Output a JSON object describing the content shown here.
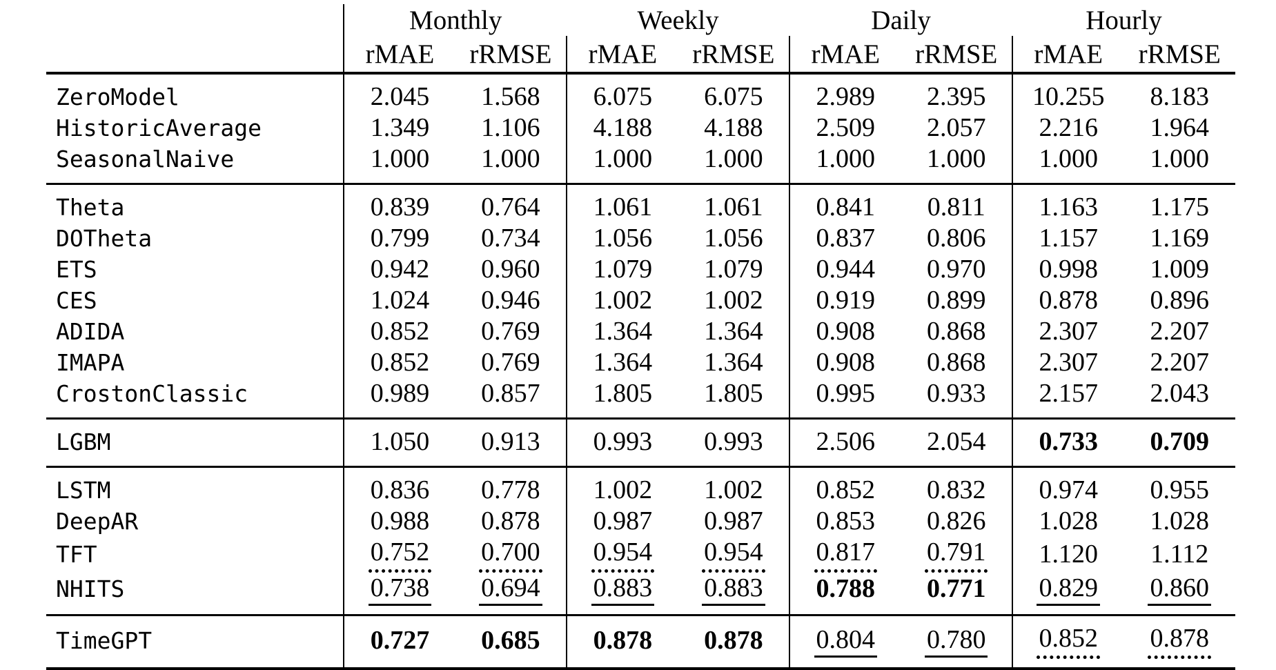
{
  "table": {
    "corner": "",
    "col_groups": [
      {
        "label": "Monthly"
      },
      {
        "label": "Weekly"
      },
      {
        "label": "Daily"
      },
      {
        "label": "Hourly"
      }
    ],
    "metric_headers": [
      "rMAE",
      "rRMSE",
      "rMAE",
      "rRMSE",
      "rMAE",
      "rRMSE",
      "rMAE",
      "rRMSE"
    ],
    "sections": [
      {
        "rows": [
          {
            "model": "ZeroModel",
            "cells": [
              {
                "v": "2.045",
                "s": "plain"
              },
              {
                "v": "1.568",
                "s": "plain"
              },
              {
                "v": "6.075",
                "s": "plain"
              },
              {
                "v": "6.075",
                "s": "plain"
              },
              {
                "v": "2.989",
                "s": "plain"
              },
              {
                "v": "2.395",
                "s": "plain"
              },
              {
                "v": "10.255",
                "s": "plain"
              },
              {
                "v": "8.183",
                "s": "plain"
              }
            ]
          },
          {
            "model": "HistoricAverage",
            "cells": [
              {
                "v": "1.349",
                "s": "plain"
              },
              {
                "v": "1.106",
                "s": "plain"
              },
              {
                "v": "4.188",
                "s": "plain"
              },
              {
                "v": "4.188",
                "s": "plain"
              },
              {
                "v": "2.509",
                "s": "plain"
              },
              {
                "v": "2.057",
                "s": "plain"
              },
              {
                "v": "2.216",
                "s": "plain"
              },
              {
                "v": "1.964",
                "s": "plain"
              }
            ]
          },
          {
            "model": "SeasonalNaive",
            "cells": [
              {
                "v": "1.000",
                "s": "plain"
              },
              {
                "v": "1.000",
                "s": "plain"
              },
              {
                "v": "1.000",
                "s": "plain"
              },
              {
                "v": "1.000",
                "s": "plain"
              },
              {
                "v": "1.000",
                "s": "plain"
              },
              {
                "v": "1.000",
                "s": "plain"
              },
              {
                "v": "1.000",
                "s": "plain"
              },
              {
                "v": "1.000",
                "s": "plain"
              }
            ]
          }
        ]
      },
      {
        "rows": [
          {
            "model": "Theta",
            "cells": [
              {
                "v": "0.839",
                "s": "plain"
              },
              {
                "v": "0.764",
                "s": "plain"
              },
              {
                "v": "1.061",
                "s": "plain"
              },
              {
                "v": "1.061",
                "s": "plain"
              },
              {
                "v": "0.841",
                "s": "plain"
              },
              {
                "v": "0.811",
                "s": "plain"
              },
              {
                "v": "1.163",
                "s": "plain"
              },
              {
                "v": "1.175",
                "s": "plain"
              }
            ]
          },
          {
            "model": "DOTheta",
            "cells": [
              {
                "v": "0.799",
                "s": "plain"
              },
              {
                "v": "0.734",
                "s": "plain"
              },
              {
                "v": "1.056",
                "s": "plain"
              },
              {
                "v": "1.056",
                "s": "plain"
              },
              {
                "v": "0.837",
                "s": "plain"
              },
              {
                "v": "0.806",
                "s": "plain"
              },
              {
                "v": "1.157",
                "s": "plain"
              },
              {
                "v": "1.169",
                "s": "plain"
              }
            ]
          },
          {
            "model": "ETS",
            "cells": [
              {
                "v": "0.942",
                "s": "plain"
              },
              {
                "v": "0.960",
                "s": "plain"
              },
              {
                "v": "1.079",
                "s": "plain"
              },
              {
                "v": "1.079",
                "s": "plain"
              },
              {
                "v": "0.944",
                "s": "plain"
              },
              {
                "v": "0.970",
                "s": "plain"
              },
              {
                "v": "0.998",
                "s": "plain"
              },
              {
                "v": "1.009",
                "s": "plain"
              }
            ]
          },
          {
            "model": "CES",
            "cells": [
              {
                "v": "1.024",
                "s": "plain"
              },
              {
                "v": "0.946",
                "s": "plain"
              },
              {
                "v": "1.002",
                "s": "plain"
              },
              {
                "v": "1.002",
                "s": "plain"
              },
              {
                "v": "0.919",
                "s": "plain"
              },
              {
                "v": "0.899",
                "s": "plain"
              },
              {
                "v": "0.878",
                "s": "plain"
              },
              {
                "v": "0.896",
                "s": "plain"
              }
            ]
          },
          {
            "model": "ADIDA",
            "cells": [
              {
                "v": "0.852",
                "s": "plain"
              },
              {
                "v": "0.769",
                "s": "plain"
              },
              {
                "v": "1.364",
                "s": "plain"
              },
              {
                "v": "1.364",
                "s": "plain"
              },
              {
                "v": "0.908",
                "s": "plain"
              },
              {
                "v": "0.868",
                "s": "plain"
              },
              {
                "v": "2.307",
                "s": "plain"
              },
              {
                "v": "2.207",
                "s": "plain"
              }
            ]
          },
          {
            "model": "IMAPA",
            "cells": [
              {
                "v": "0.852",
                "s": "plain"
              },
              {
                "v": "0.769",
                "s": "plain"
              },
              {
                "v": "1.364",
                "s": "plain"
              },
              {
                "v": "1.364",
                "s": "plain"
              },
              {
                "v": "0.908",
                "s": "plain"
              },
              {
                "v": "0.868",
                "s": "plain"
              },
              {
                "v": "2.307",
                "s": "plain"
              },
              {
                "v": "2.207",
                "s": "plain"
              }
            ]
          },
          {
            "model": "CrostonClassic",
            "cells": [
              {
                "v": "0.989",
                "s": "plain"
              },
              {
                "v": "0.857",
                "s": "plain"
              },
              {
                "v": "1.805",
                "s": "plain"
              },
              {
                "v": "1.805",
                "s": "plain"
              },
              {
                "v": "0.995",
                "s": "plain"
              },
              {
                "v": "0.933",
                "s": "plain"
              },
              {
                "v": "2.157",
                "s": "plain"
              },
              {
                "v": "2.043",
                "s": "plain"
              }
            ]
          }
        ]
      },
      {
        "rows": [
          {
            "model": "LGBM",
            "cells": [
              {
                "v": "1.050",
                "s": "plain"
              },
              {
                "v": "0.913",
                "s": "plain"
              },
              {
                "v": "0.993",
                "s": "plain"
              },
              {
                "v": "0.993",
                "s": "plain"
              },
              {
                "v": "2.506",
                "s": "plain"
              },
              {
                "v": "2.054",
                "s": "plain"
              },
              {
                "v": "0.733",
                "s": "bold"
              },
              {
                "v": "0.709",
                "s": "bold"
              }
            ]
          }
        ]
      },
      {
        "rows": [
          {
            "model": "LSTM",
            "cells": [
              {
                "v": "0.836",
                "s": "plain"
              },
              {
                "v": "0.778",
                "s": "plain"
              },
              {
                "v": "1.002",
                "s": "plain"
              },
              {
                "v": "1.002",
                "s": "plain"
              },
              {
                "v": "0.852",
                "s": "plain"
              },
              {
                "v": "0.832",
                "s": "plain"
              },
              {
                "v": "0.974",
                "s": "plain"
              },
              {
                "v": "0.955",
                "s": "plain"
              }
            ]
          },
          {
            "model": "DeepAR",
            "cells": [
              {
                "v": "0.988",
                "s": "plain"
              },
              {
                "v": "0.878",
                "s": "plain"
              },
              {
                "v": "0.987",
                "s": "plain"
              },
              {
                "v": "0.987",
                "s": "plain"
              },
              {
                "v": "0.853",
                "s": "plain"
              },
              {
                "v": "0.826",
                "s": "plain"
              },
              {
                "v": "1.028",
                "s": "plain"
              },
              {
                "v": "1.028",
                "s": "plain"
              }
            ]
          },
          {
            "model": "TFT",
            "cells": [
              {
                "v": "0.752",
                "s": "dotted"
              },
              {
                "v": "0.700",
                "s": "dotted"
              },
              {
                "v": "0.954",
                "s": "dotted"
              },
              {
                "v": "0.954",
                "s": "dotted"
              },
              {
                "v": "0.817",
                "s": "dotted"
              },
              {
                "v": "0.791",
                "s": "dotted"
              },
              {
                "v": "1.120",
                "s": "plain"
              },
              {
                "v": "1.112",
                "s": "plain"
              }
            ]
          },
          {
            "model": "NHITS",
            "cells": [
              {
                "v": "0.738",
                "s": "underline"
              },
              {
                "v": "0.694",
                "s": "underline"
              },
              {
                "v": "0.883",
                "s": "underline"
              },
              {
                "v": "0.883",
                "s": "underline"
              },
              {
                "v": "0.788",
                "s": "bold"
              },
              {
                "v": "0.771",
                "s": "bold"
              },
              {
                "v": "0.829",
                "s": "underline"
              },
              {
                "v": "0.860",
                "s": "underline"
              }
            ]
          }
        ]
      },
      {
        "rows": [
          {
            "model": "TimeGPT",
            "cells": [
              {
                "v": "0.727",
                "s": "bold"
              },
              {
                "v": "0.685",
                "s": "bold"
              },
              {
                "v": "0.878",
                "s": "bold"
              },
              {
                "v": "0.878",
                "s": "bold"
              },
              {
                "v": "0.804",
                "s": "underline"
              },
              {
                "v": "0.780",
                "s": "underline"
              },
              {
                "v": "0.852",
                "s": "dotted"
              },
              {
                "v": "0.878",
                "s": "dotted"
              }
            ]
          }
        ]
      }
    ]
  }
}
